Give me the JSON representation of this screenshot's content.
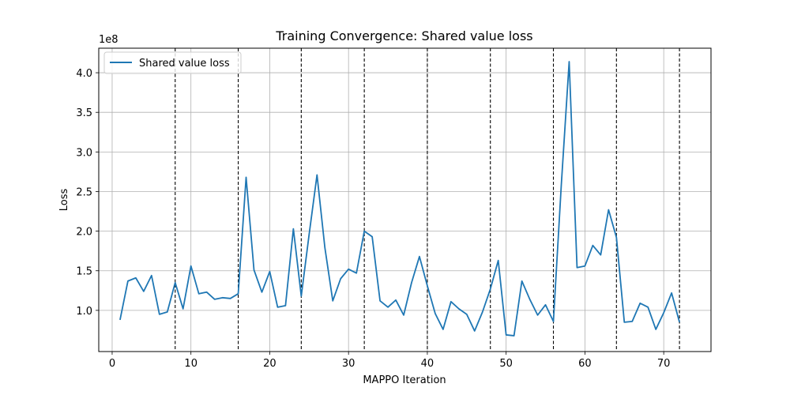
{
  "chart_data": {
    "type": "line",
    "title": "Training Convergence: Shared value loss",
    "xlabel": "MAPPO Iteration",
    "ylabel": "Loss",
    "y_scale_label": "1e8",
    "xlim": [
      -1.7,
      76
    ],
    "ylim": [
      0.48,
      4.31
    ],
    "x_ticks": [
      0,
      10,
      20,
      30,
      40,
      50,
      60,
      70
    ],
    "x_tick_labels": [
      "0",
      "10",
      "20",
      "30",
      "40",
      "50",
      "60",
      "70"
    ],
    "y_ticks": [
      1.0,
      1.5,
      2.0,
      2.5,
      3.0,
      3.5,
      4.0
    ],
    "y_tick_labels": [
      "1.0",
      "1.5",
      "2.0",
      "2.5",
      "3.0",
      "3.5",
      "4.0"
    ],
    "grid": true,
    "legend_position": "top-left",
    "vlines": [
      8,
      16,
      24,
      32,
      40,
      48,
      56,
      64,
      72
    ],
    "series": [
      {
        "name": "Shared value loss",
        "color": "#1f77b4",
        "x": [
          1,
          2,
          3,
          4,
          5,
          6,
          7,
          8,
          9,
          10,
          11,
          12,
          13,
          14,
          15,
          16,
          17,
          18,
          19,
          20,
          21,
          22,
          23,
          24,
          25,
          26,
          27,
          28,
          29,
          30,
          31,
          32,
          33,
          34,
          35,
          36,
          37,
          38,
          39,
          40,
          41,
          42,
          43,
          44,
          45,
          46,
          47,
          48,
          49,
          50,
          51,
          52,
          53,
          54,
          55,
          56,
          57,
          58,
          59,
          60,
          61,
          62,
          63,
          64,
          65,
          66,
          67,
          68,
          69,
          70,
          71,
          72
        ],
        "y": [
          0.88,
          1.37,
          1.41,
          1.24,
          1.44,
          0.95,
          0.98,
          1.35,
          1.02,
          1.56,
          1.21,
          1.23,
          1.14,
          1.16,
          1.15,
          1.21,
          2.68,
          1.51,
          1.23,
          1.49,
          1.04,
          1.06,
          2.03,
          1.18,
          1.96,
          2.71,
          1.79,
          1.12,
          1.4,
          1.52,
          1.47,
          2.0,
          1.93,
          1.12,
          1.04,
          1.13,
          0.94,
          1.35,
          1.68,
          1.31,
          0.96,
          0.76,
          1.11,
          1.02,
          0.95,
          0.74,
          0.98,
          1.27,
          1.63,
          0.69,
          0.68,
          1.37,
          1.14,
          0.94,
          1.07,
          0.86,
          2.58,
          4.14,
          1.54,
          1.56,
          1.82,
          1.7,
          2.27,
          1.92,
          0.85,
          0.86,
          1.09,
          1.04,
          0.76,
          0.97,
          1.22,
          0.85
        ]
      }
    ]
  }
}
